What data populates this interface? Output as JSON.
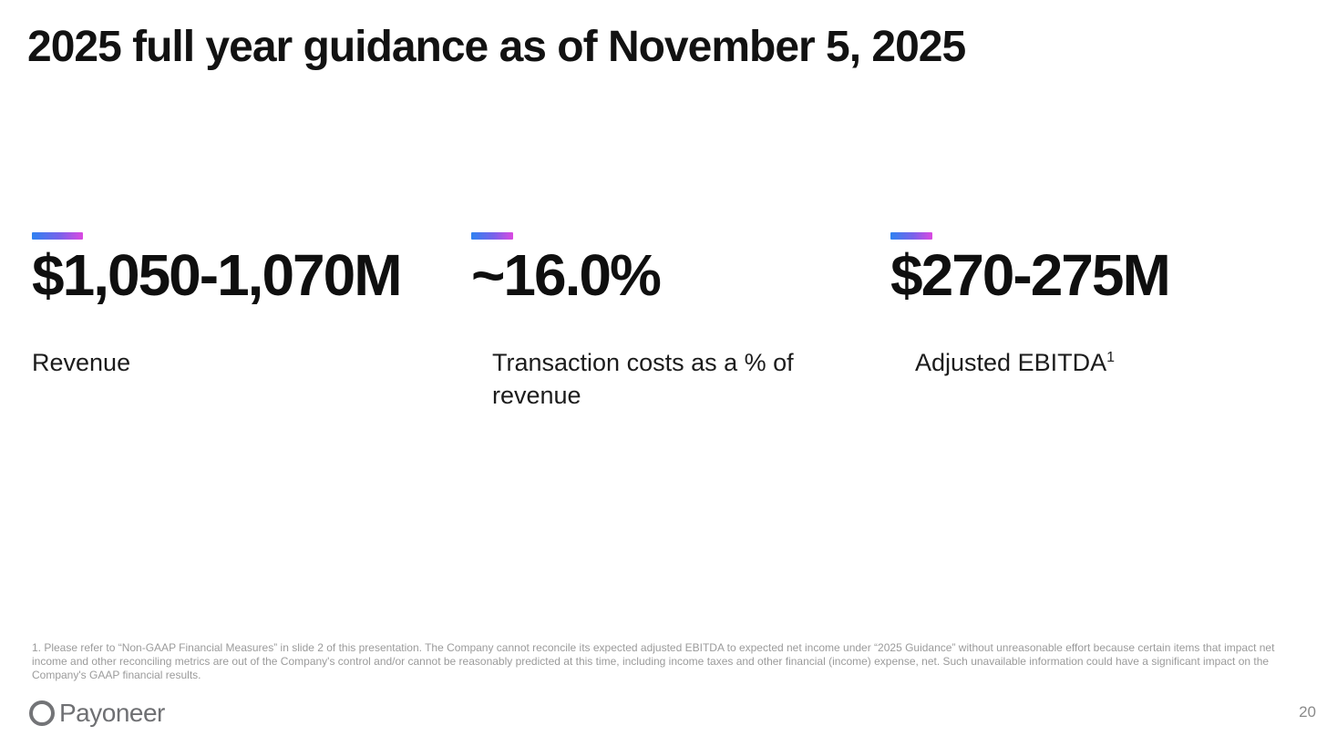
{
  "slide": {
    "title": "2025 full year guidance as of November 5, 2025",
    "metrics": [
      {
        "value": "$1,050-1,070M",
        "label": "Revenue"
      },
      {
        "value": "~16.0%",
        "label": "Transaction costs as a % of revenue"
      },
      {
        "value": "$270-275M",
        "label": "Adjusted EBITDA",
        "label_superscript": "1"
      }
    ],
    "footnote": "1. Please refer to “Non-GAAP Financial Measures” in slide 2 of this presentation. The Company cannot reconcile its expected adjusted EBITDA to expected net income under “2025 Guidance” without unreasonable effort because certain items that impact net income and other reconciling metrics are out of the Company's control and/or cannot be reasonably predicted at this time, including income taxes and other financial (income) expense, net. Such unavailable information could have a significant impact on the Company's GAAP financial results.",
    "logo_text": "Payoneer",
    "page_number": "20",
    "accent_gradient": {
      "from": "#2E82F1",
      "to": "#DB49E1"
    },
    "colors": {
      "text": "#0f0f0f",
      "footnote": "#9b9b9b",
      "logo": "#6f7073"
    }
  }
}
